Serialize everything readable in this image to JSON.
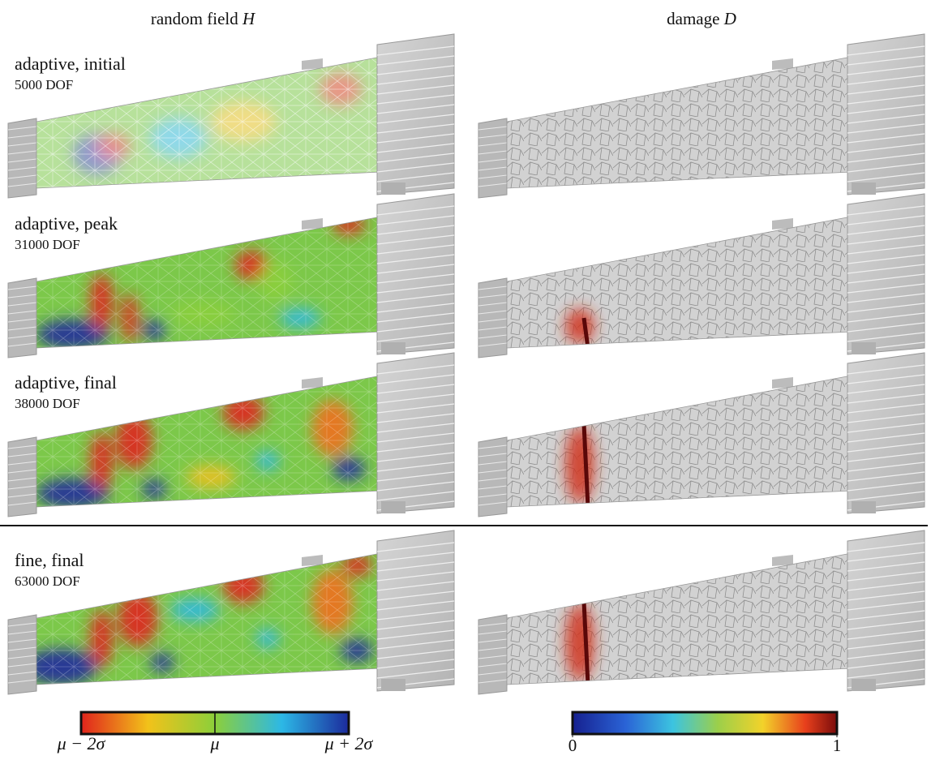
{
  "columns": [
    {
      "title": "random field",
      "symbol": "H"
    },
    {
      "title": "damage",
      "symbol": "D"
    }
  ],
  "rows": [
    {
      "label": "adaptive, initial",
      "dof": "5000 DOF"
    },
    {
      "label": "adaptive, peak",
      "dof": "31000 DOF"
    },
    {
      "label": "adaptive, final",
      "dof": "38000 DOF"
    },
    {
      "label": "fine, final",
      "dof": "63000 DOF"
    }
  ],
  "colorbars": [
    {
      "labels": [
        "μ − 2σ",
        "μ",
        "μ + 2σ"
      ]
    },
    {
      "lim": [
        0,
        1
      ],
      "ticks": [
        0,
        1
      ]
    }
  ]
}
